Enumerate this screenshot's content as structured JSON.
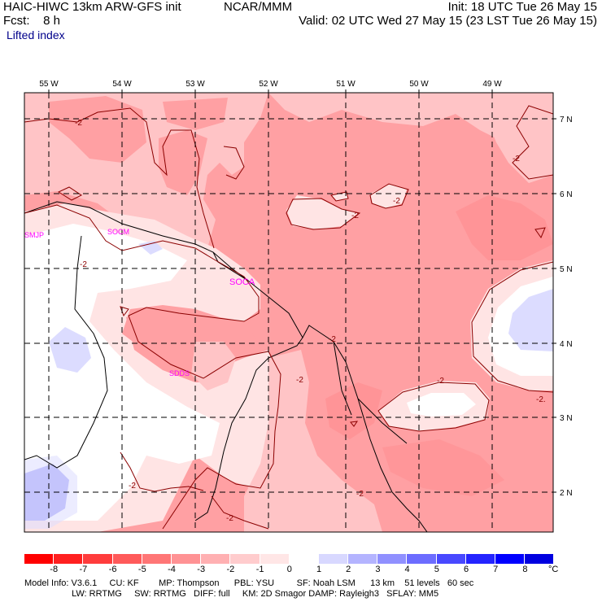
{
  "header": {
    "model_title": "HAIC-HIWC 13km ARW-GFS init",
    "org": "NCAR/MMM",
    "fcst_line": "Fcst:    8 h",
    "init_line": "Init: 18 UTC Tue 26 May 15",
    "valid_line": "Valid: 02 UTC Wed 27 May 15 (23 LST Tue 26 May 15)",
    "field": "Lifted index"
  },
  "map": {
    "lon_labels": [
      "55 W",
      "54 W",
      "53 W",
      "52 W",
      "51 W",
      "50 W",
      "49 W"
    ],
    "lat_labels": [
      "7 N",
      "6 N",
      "5 N",
      "4 N",
      "3 N",
      "2 N"
    ],
    "stations": [
      "SMJP",
      "SOCM",
      "SOCA",
      "SDDS"
    ],
    "contour_labels": [
      "-2",
      "-2",
      "-2",
      "-2",
      "-2",
      "-2",
      "-2",
      "-2",
      "-2",
      "-2",
      "-2.",
      "-2"
    ],
    "colors": {
      "minus3": "#ffa0a3",
      "minus2": "#ffc4c6",
      "minus1": "#ffe4e4",
      "zero": "#ffffff",
      "plus1": "#dcdcff",
      "plus2": "#a6a6f8"
    }
  },
  "colorbar": {
    "labels": [
      "-8",
      "-7",
      "-6",
      "-5",
      "-4",
      "-3",
      "-2",
      "-1",
      "0",
      "1",
      "2",
      "3",
      "4",
      "5",
      "6",
      "7",
      "8"
    ],
    "colors": [
      "#ff0000",
      "#ff2020",
      "#ff3c3c",
      "#ff5a5a",
      "#ff7676",
      "#ff9294",
      "#ffb0b2",
      "#ffcccd",
      "#ffe6e6",
      "#ffffff",
      "#d8d8ff",
      "#b4b4ff",
      "#9090ff",
      "#6c6cff",
      "#4848ff",
      "#2424ff",
      "#0000ff",
      "#0000e0"
    ],
    "unit": "°C"
  },
  "footer": {
    "line1": "Model Info: V3.6.1     CU: KF        MP: Thompson      PBL: YSU         SF: Noah LSM      13 km    51 levels   60 sec",
    "line2": "                   LW: RRTMG     SW: RRTMG   DIFF: full     KM: 2D Smagor DAMP: Rayleigh3   SFLAY: MM5"
  }
}
